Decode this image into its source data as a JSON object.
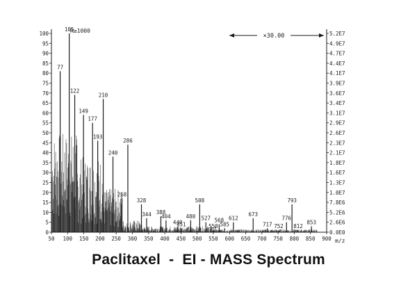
{
  "chart_data": {
    "type": "bar",
    "title": "Paclitaxel  -  EI - MASS Spectrum",
    "xlabel": "m/z",
    "xlim": [
      50,
      900
    ],
    "ylim": [
      0,
      100
    ],
    "x_ticks": [
      50,
      100,
      150,
      200,
      250,
      300,
      350,
      400,
      450,
      500,
      550,
      600,
      650,
      700,
      750,
      800,
      850,
      900
    ],
    "y_ticks_left": [
      0,
      5,
      10,
      15,
      20,
      25,
      30,
      35,
      40,
      45,
      50,
      55,
      60,
      65,
      70,
      75,
      80,
      85,
      90,
      95,
      100
    ],
    "y_ticks_right": [
      "0.0E0",
      "2.6E6",
      "5.2E6",
      "7.8E6",
      "1.0E7",
      "1.3E7",
      "1.6E7",
      "1.8E7",
      "2.1E7",
      "2.3E7",
      "2.6E7",
      "2.9E7",
      "3.1E7",
      "3.4E7",
      "3.6E7",
      "3.9E7",
      "4.1E7",
      "4.4E7",
      "4.7E7",
      "4.9E7",
      "5.2E7"
    ],
    "base_peak_label": "R≥1000",
    "magnification": {
      "label": "×30.00",
      "from": 560,
      "to": 900
    },
    "peaks": [
      {
        "mz": 105,
        "intensity": 100
      },
      {
        "mz": 77,
        "intensity": 81
      },
      {
        "mz": 122,
        "intensity": 69
      },
      {
        "mz": 149,
        "intensity": 59
      },
      {
        "mz": 177,
        "intensity": 55
      },
      {
        "mz": 193,
        "intensity": 46
      },
      {
        "mz": 210,
        "intensity": 67
      },
      {
        "mz": 240,
        "intensity": 38
      },
      {
        "mz": 268,
        "intensity": 17
      },
      {
        "mz": 286,
        "intensity": 44
      },
      {
        "mz": 328,
        "intensity": 14
      },
      {
        "mz": 344,
        "intensity": 7
      },
      {
        "mz": 388,
        "intensity": 8
      },
      {
        "mz": 404,
        "intensity": 6
      },
      {
        "mz": 440,
        "intensity": 3
      },
      {
        "mz": 451,
        "intensity": 2
      },
      {
        "mz": 480,
        "intensity": 6
      },
      {
        "mz": 508,
        "intensity": 14
      },
      {
        "mz": 527,
        "intensity": 5
      },
      {
        "mz": 550,
        "intensity": 1
      },
      {
        "mz": 568,
        "intensity": 4
      },
      {
        "mz": 585,
        "intensity": 2
      },
      {
        "mz": 612,
        "intensity": 5
      },
      {
        "mz": 673,
        "intensity": 7
      },
      {
        "mz": 717,
        "intensity": 2
      },
      {
        "mz": 752,
        "intensity": 1
      },
      {
        "mz": 776,
        "intensity": 5
      },
      {
        "mz": 793,
        "intensity": 14
      },
      {
        "mz": 812,
        "intensity": 1
      },
      {
        "mz": 853,
        "intensity": 3
      }
    ],
    "peak_labels": [
      {
        "mz": 105,
        "text": "105"
      },
      {
        "mz": 77,
        "text": "77"
      },
      {
        "mz": 122,
        "text": "122"
      },
      {
        "mz": 149,
        "text": "149"
      },
      {
        "mz": 177,
        "text": "177"
      },
      {
        "mz": 193,
        "text": "193"
      },
      {
        "mz": 210,
        "text": "210"
      },
      {
        "mz": 240,
        "text": "240"
      },
      {
        "mz": 268,
        "text": "268"
      },
      {
        "mz": 286,
        "text": "286"
      },
      {
        "mz": 328,
        "text": "328"
      },
      {
        "mz": 344,
        "text": "344"
      },
      {
        "mz": 388,
        "text": "388"
      },
      {
        "mz": 404,
        "text": "404"
      },
      {
        "mz": 440,
        "text": "440"
      },
      {
        "mz": 451,
        "text": "451"
      },
      {
        "mz": 480,
        "text": "480"
      },
      {
        "mz": 508,
        "text": "508"
      },
      {
        "mz": 527,
        "text": "527"
      },
      {
        "mz": 550,
        "text": "550"
      },
      {
        "mz": 568,
        "text": "568"
      },
      {
        "mz": 585,
        "text": "585"
      },
      {
        "mz": 612,
        "text": "612"
      },
      {
        "mz": 673,
        "text": "673"
      },
      {
        "mz": 717,
        "text": "717"
      },
      {
        "mz": 752,
        "text": "752"
      },
      {
        "mz": 776,
        "text": "776"
      },
      {
        "mz": 793,
        "text": "793"
      },
      {
        "mz": 812,
        "text": "812"
      },
      {
        "mz": 853,
        "text": "853"
      }
    ]
  },
  "colors": {
    "ink": "#1a1a1a",
    "background": "#ffffff"
  }
}
